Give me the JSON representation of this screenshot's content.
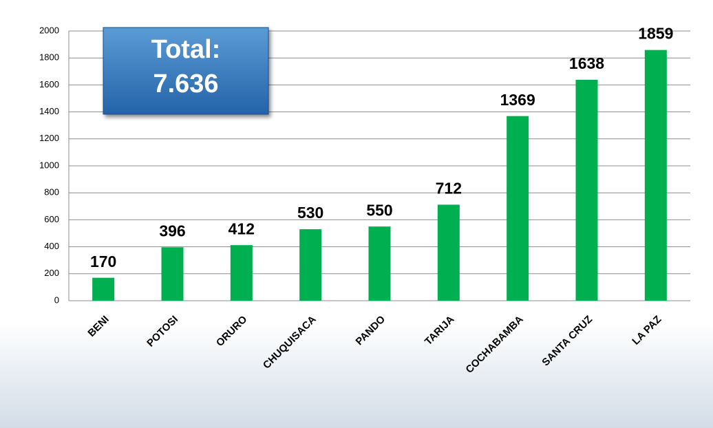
{
  "chart_data": {
    "type": "bar",
    "categories": [
      "BENI",
      "POTOSI",
      "ORURO",
      "CHUQUISACA",
      "PANDO",
      "TARIJA",
      "COCHABAMBA",
      "SANTA CRUZ",
      "LA PAZ"
    ],
    "values": [
      170,
      396,
      412,
      530,
      550,
      712,
      1369,
      1638,
      1859
    ],
    "color": "#00b050",
    "ylim": [
      0,
      2000
    ],
    "yticks": [
      0,
      200,
      400,
      600,
      800,
      1000,
      1200,
      1400,
      1600,
      1800,
      2000
    ],
    "grid": true,
    "annotations": [
      "Total:",
      "7.636"
    ]
  }
}
